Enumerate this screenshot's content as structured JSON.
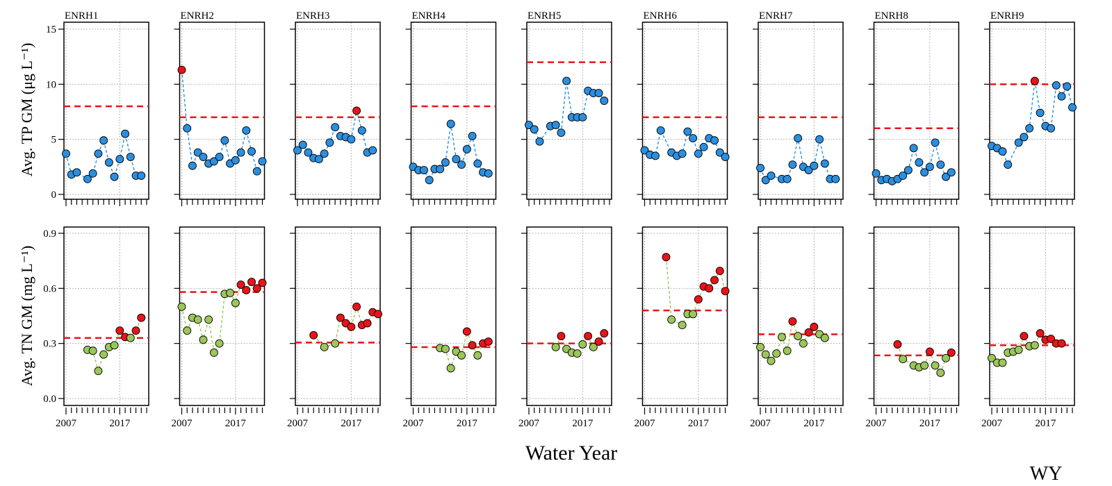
{
  "colors": {
    "tp_point": "#2b8fe0",
    "tn_point": "#9cc65a",
    "exceed_point": "#e8141a",
    "threshold_line": "#e8141a",
    "grid": "#b4b4b4"
  },
  "labels": {
    "tp_ylabel": "Avg. TP GM (μg L⁻¹)",
    "tn_ylabel": "Avg. TN GM (mg L⁻¹)",
    "xlabel": "Water Year",
    "wy_label": "WY"
  },
  "chart_data": {
    "type": "scatter",
    "x_axis": {
      "xlim": [
        2007,
        2022
      ],
      "tick_labels": [
        2007,
        2017
      ],
      "minor_tick_step": 1
    },
    "tp_axis": {
      "ylim": [
        0,
        15
      ],
      "ticks": [
        0,
        5,
        10,
        15
      ]
    },
    "tn_axis": {
      "ylim": [
        0.0,
        0.9
      ],
      "ticks": [
        "0.0",
        "0.3",
        "0.6",
        "0.9"
      ]
    },
    "panels": [
      {
        "site": "ENRH1",
        "tp": {
          "threshold": 8,
          "x": [
            2007,
            2008,
            2009,
            2011,
            2012,
            2013,
            2014,
            2015,
            2016,
            2017,
            2018,
            2019,
            2020,
            2021
          ],
          "y": [
            3.7,
            1.8,
            2.0,
            1.4,
            1.9,
            3.7,
            4.9,
            2.9,
            1.6,
            3.2,
            5.5,
            3.4,
            1.7,
            1.7
          ]
        },
        "tn": {
          "threshold": 0.33,
          "x": [
            2011,
            2012,
            2013,
            2014,
            2015,
            2016,
            2017,
            2018,
            2019,
            2020,
            2021
          ],
          "y": [
            0.265,
            0.26,
            0.15,
            0.24,
            0.28,
            0.29,
            0.37,
            0.335,
            0.33,
            0.37,
            0.44
          ]
        }
      },
      {
        "site": "ENRH2",
        "tp": {
          "threshold": 7,
          "x": [
            2007,
            2008,
            2009,
            2010,
            2011,
            2012,
            2013,
            2014,
            2015,
            2016,
            2017,
            2018,
            2019,
            2020,
            2021,
            2022
          ],
          "y": [
            11.3,
            6.0,
            2.6,
            3.8,
            3.4,
            2.8,
            3.0,
            3.4,
            4.9,
            2.8,
            3.1,
            3.8,
            5.8,
            3.9,
            2.1,
            3.0
          ]
        },
        "tn": {
          "threshold": 0.58,
          "x": [
            2007,
            2008,
            2009,
            2010,
            2011,
            2012,
            2013,
            2014,
            2015,
            2016,
            2017,
            2018,
            2019,
            2020,
            2021,
            2022
          ],
          "y": [
            0.5,
            0.37,
            0.44,
            0.43,
            0.32,
            0.43,
            0.25,
            0.3,
            0.57,
            0.575,
            0.52,
            0.62,
            0.59,
            0.635,
            0.6,
            0.63
          ]
        }
      },
      {
        "site": "ENRH3",
        "tp": {
          "threshold": 7,
          "x": [
            2007,
            2008,
            2009,
            2010,
            2011,
            2012,
            2013,
            2014,
            2015,
            2016,
            2017,
            2018,
            2019,
            2020,
            2021
          ],
          "y": [
            4.0,
            4.5,
            3.8,
            3.3,
            3.2,
            3.7,
            4.7,
            6.1,
            5.3,
            5.2,
            5.0,
            7.6,
            5.8,
            3.8,
            4.0
          ]
        },
        "tn": {
          "threshold": 0.305,
          "x": [
            2010,
            2012,
            2014,
            2015,
            2016,
            2017,
            2018,
            2019,
            2020,
            2021,
            2022
          ],
          "y": [
            0.345,
            0.28,
            0.3,
            0.44,
            0.41,
            0.39,
            0.5,
            0.4,
            0.41,
            0.47,
            0.46
          ]
        }
      },
      {
        "site": "ENRH4",
        "tp": {
          "threshold": 8,
          "x": [
            2007,
            2008,
            2009,
            2010,
            2011,
            2012,
            2013,
            2014,
            2015,
            2016,
            2017,
            2018,
            2019,
            2020,
            2021
          ],
          "y": [
            2.5,
            2.2,
            2.2,
            1.3,
            2.3,
            2.3,
            2.9,
            6.4,
            3.2,
            2.7,
            4.1,
            5.3,
            2.8,
            2.0,
            1.9
          ]
        },
        "tn": {
          "threshold": 0.28,
          "x": [
            2012,
            2013,
            2014,
            2015,
            2016,
            2017,
            2018,
            2019,
            2020,
            2021
          ],
          "y": [
            0.275,
            0.27,
            0.165,
            0.255,
            0.235,
            0.365,
            0.29,
            0.235,
            0.3,
            0.31
          ]
        }
      },
      {
        "site": "ENRH5",
        "tp": {
          "threshold": 12,
          "x": [
            2007,
            2008,
            2009,
            2011,
            2012,
            2013,
            2014,
            2015,
            2016,
            2017,
            2018,
            2019,
            2020,
            2021
          ],
          "y": [
            6.3,
            5.9,
            4.8,
            6.2,
            6.3,
            5.6,
            10.3,
            7.0,
            7.0,
            7.0,
            9.4,
            9.2,
            9.2,
            8.5
          ]
        },
        "tn": {
          "threshold": 0.3,
          "x": [
            2012,
            2013,
            2014,
            2015,
            2016,
            2017,
            2018,
            2019,
            2020,
            2021
          ],
          "y": [
            0.28,
            0.34,
            0.27,
            0.25,
            0.245,
            0.295,
            0.34,
            0.28,
            0.31,
            0.355
          ]
        }
      },
      {
        "site": "ENRH6",
        "tp": {
          "threshold": 7,
          "x": [
            2007,
            2008,
            2009,
            2010,
            2012,
            2013,
            2014,
            2015,
            2016,
            2017,
            2018,
            2019,
            2020,
            2021,
            2022
          ],
          "y": [
            4.0,
            3.6,
            3.5,
            5.8,
            3.8,
            3.5,
            3.7,
            5.7,
            5.1,
            3.7,
            4.3,
            5.1,
            4.9,
            3.8,
            3.4
          ]
        },
        "tn": {
          "threshold": 0.48,
          "x": [
            2011,
            2012,
            2014,
            2015,
            2016,
            2017,
            2018,
            2019,
            2020,
            2021,
            2022
          ],
          "y": [
            0.77,
            0.43,
            0.4,
            0.46,
            0.46,
            0.54,
            0.61,
            0.6,
            0.645,
            0.695,
            0.585
          ]
        }
      },
      {
        "site": "ENRH7",
        "tp": {
          "threshold": 7,
          "x": [
            2007,
            2008,
            2009,
            2011,
            2012,
            2013,
            2014,
            2015,
            2016,
            2017,
            2018,
            2019,
            2020,
            2021
          ],
          "y": [
            2.4,
            1.3,
            1.7,
            1.4,
            1.4,
            2.7,
            5.1,
            2.5,
            2.2,
            2.6,
            5.0,
            2.8,
            1.4,
            1.4
          ]
        },
        "tn": {
          "threshold": 0.35,
          "x": [
            2007,
            2008,
            2009,
            2010,
            2011,
            2012,
            2013,
            2014,
            2015,
            2016,
            2017,
            2018,
            2019
          ],
          "y": [
            0.28,
            0.24,
            0.205,
            0.245,
            0.335,
            0.26,
            0.42,
            0.34,
            0.3,
            0.36,
            0.39,
            0.35,
            0.33
          ]
        }
      },
      {
        "site": "ENRH8",
        "tp": {
          "threshold": 6,
          "x": [
            2007,
            2008,
            2009,
            2010,
            2011,
            2012,
            2013,
            2014,
            2015,
            2016,
            2017,
            2018,
            2019,
            2020,
            2021
          ],
          "y": [
            1.9,
            1.3,
            1.4,
            1.2,
            1.4,
            1.7,
            2.2,
            4.2,
            2.9,
            2.0,
            2.5,
            4.7,
            2.7,
            1.6,
            2.0
          ]
        },
        "tn": {
          "threshold": 0.235,
          "x": [
            2011,
            2012,
            2014,
            2015,
            2016,
            2017,
            2018,
            2019,
            2020,
            2021
          ],
          "y": [
            0.295,
            0.215,
            0.18,
            0.17,
            0.18,
            0.255,
            0.18,
            0.14,
            0.22,
            0.25
          ]
        }
      },
      {
        "site": "ENRH9",
        "tp": {
          "threshold": 10,
          "x": [
            2007,
            2008,
            2009,
            2010,
            2012,
            2013,
            2014,
            2015,
            2016,
            2017,
            2018,
            2019,
            2020,
            2021,
            2022
          ],
          "y": [
            4.4,
            4.2,
            3.9,
            2.7,
            4.7,
            5.2,
            6.0,
            10.3,
            7.4,
            6.2,
            6.0,
            9.9,
            8.9,
            9.8,
            7.9
          ]
        },
        "tn": {
          "threshold": 0.29,
          "x": [
            2007,
            2008,
            2009,
            2010,
            2011,
            2012,
            2013,
            2014,
            2015,
            2016,
            2017,
            2018,
            2019,
            2020
          ],
          "y": [
            0.22,
            0.195,
            0.195,
            0.25,
            0.255,
            0.265,
            0.34,
            0.285,
            0.29,
            0.355,
            0.32,
            0.325,
            0.3,
            0.3
          ]
        }
      }
    ]
  }
}
